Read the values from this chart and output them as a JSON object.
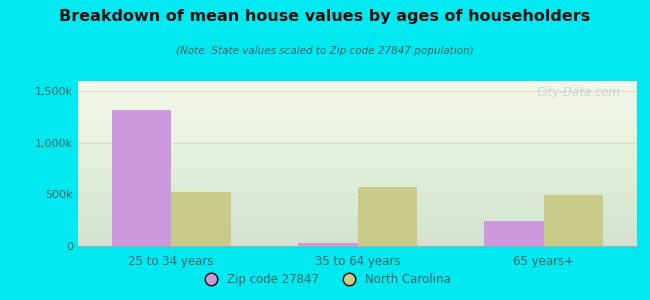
{
  "title": "Breakdown of mean house values by ages of householders",
  "subtitle": "(Note: State values scaled to Zip code 27847 population)",
  "categories": [
    "25 to 34 years",
    "35 to 64 years",
    "65 years+"
  ],
  "zip_values": [
    1320000,
    30000,
    240000
  ],
  "nc_values": [
    520000,
    570000,
    490000
  ],
  "zip_color": "#cc99dd",
  "nc_color": "#c8cc88",
  "background_outer": "#00e8f0",
  "background_inner_top": "#f5f8ee",
  "background_inner_bottom": "#e8f0d8",
  "bar_width": 0.32,
  "ylim": [
    0,
    1600000
  ],
  "yticks": [
    0,
    500000,
    1000000,
    1500000
  ],
  "ytick_labels": [
    "0",
    "500k",
    "1,000k",
    "1,500k"
  ],
  "legend_zip_label": "Zip code 27847",
  "legend_nc_label": "North Carolina",
  "watermark": "City-Data.com",
  "title_color": "#111111",
  "subtitle_color": "#336666",
  "tick_label_color": "#336666",
  "grid_color": "#ddddcc"
}
